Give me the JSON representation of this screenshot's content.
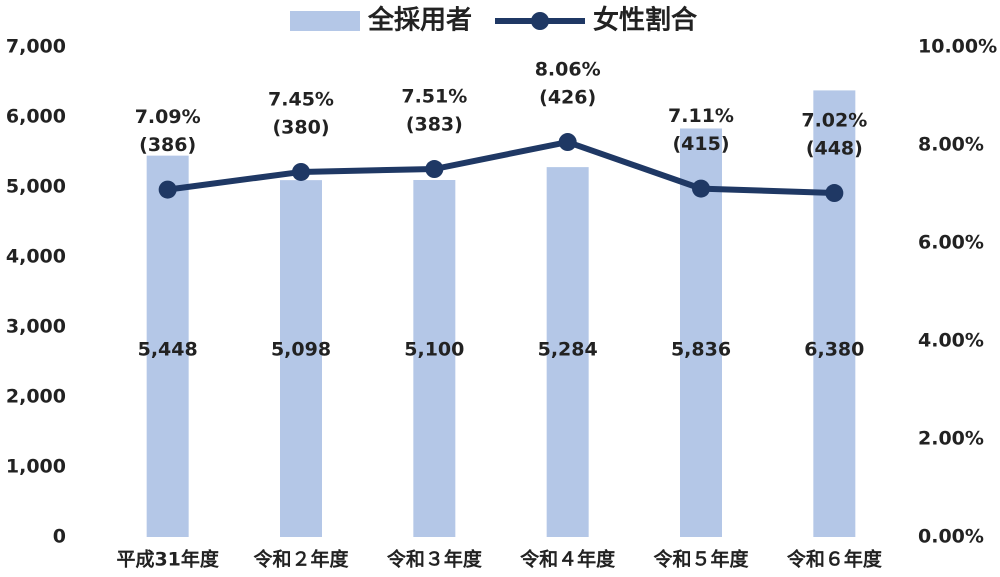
{
  "chart_data": {
    "type": "bar_line",
    "categories": [
      "平成31年度",
      "令和２年度",
      "令和３年度",
      "令和４年度",
      "令和５年度",
      "令和６年度"
    ],
    "series": [
      {
        "name": "全採用者",
        "type": "bar",
        "color": "#b4c7e7",
        "values": [
          5448,
          5098,
          5100,
          5284,
          5836,
          6380
        ],
        "value_labels": [
          "5,448",
          "5,098",
          "5,100",
          "5,284",
          "5,836",
          "6,380"
        ]
      },
      {
        "name": "女性割合",
        "type": "line",
        "axis": "y2",
        "color": "#1f3864",
        "values": [
          7.09,
          7.45,
          7.51,
          8.06,
          7.11,
          7.02
        ],
        "value_labels": [
          "7.09%",
          "7.45%",
          "7.51%",
          "8.06%",
          "7.11%",
          "7.02%"
        ],
        "secondary_labels": [
          "(386)",
          "(380)",
          "(383)",
          "(426)",
          "(415)",
          "(448)"
        ]
      }
    ],
    "ylim": [
      0,
      7000
    ],
    "yticks": [
      0,
      {
        "value": 1000,
        "label": "1,000"
      },
      {
        "value": 2000,
        "label": "2,000"
      },
      {
        "value": 3000,
        "label": "3,000"
      },
      {
        "value": 4000,
        "label": "4,000"
      },
      {
        "value": 5000,
        "label": "5,000"
      },
      {
        "value": 6000,
        "label": "6,000"
      },
      {
        "value": 7000,
        "label": "7,000"
      }
    ],
    "y2lim": [
      0,
      10
    ],
    "y2ticks": [
      {
        "value": 0,
        "label": "0.00%"
      },
      {
        "value": 2,
        "label": "2.00%"
      },
      {
        "value": 4,
        "label": "4.00%"
      },
      {
        "value": 6,
        "label": "6.00%"
      },
      {
        "value": 8,
        "label": "8.00%"
      },
      {
        "value": 10,
        "label": "10.00%"
      }
    ],
    "grid": false,
    "legend": "top"
  }
}
